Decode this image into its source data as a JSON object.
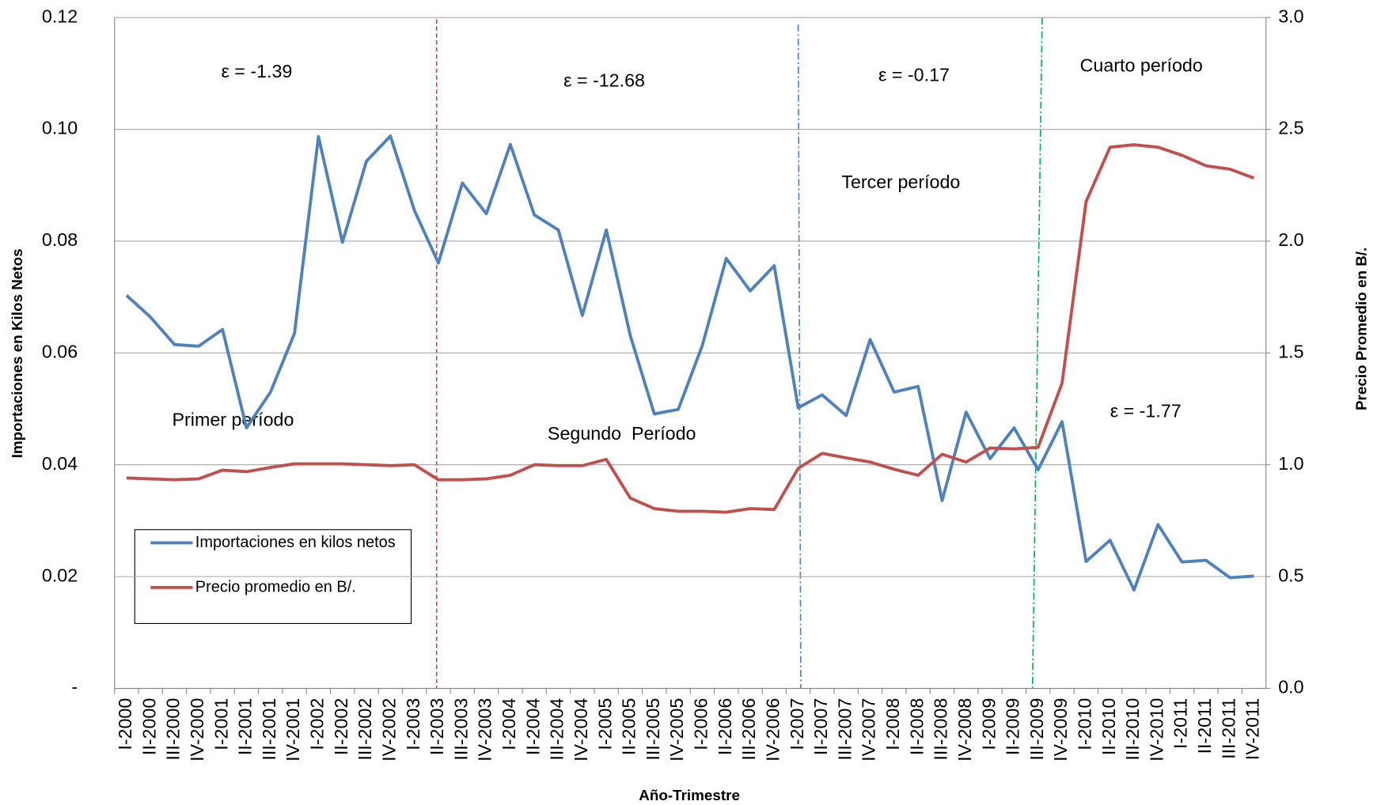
{
  "chart_data": {
    "type": "line",
    "x_label": "Año-Trimestre",
    "y_label": "Importaciones en Kilos Netos",
    "y2_label": "Precio Promedio en B/.",
    "categories": [
      "I-2000",
      "II-2000",
      "III-2000",
      "IV-2000",
      "I-2001",
      "II-2001",
      "III-2001",
      "IV-2001",
      "I-2002",
      "II-2002",
      "III-2002",
      "IV-2002",
      "I-2003",
      "II-2003",
      "III-2003",
      "IV-2003",
      "I-2004",
      "II-2004",
      "III-2004",
      "IV-2004",
      "I-2005",
      "II-2005",
      "III-2005",
      "IV-2005",
      "I-2006",
      "II-2006",
      "III-2006",
      "IV-2006",
      "I-2007",
      "II-2007",
      "III-2007",
      "IV-2007",
      "I-2008",
      "II-2008",
      "III-2008",
      "IV-2008",
      "I-2009",
      "II-2009",
      "III-2009",
      "IV-2009",
      "I-2010",
      "II-2010",
      "III-2010",
      "IV-2010",
      "I-2011",
      "II-2011",
      "III-2011",
      "IV-2011"
    ],
    "series": [
      {
        "name": "Importaciones en kilos netos",
        "color": "#4f81bd",
        "values": [
          0.0703,
          0.0664,
          0.0615,
          0.0612,
          0.0642,
          0.0466,
          0.053,
          0.0635,
          0.0987,
          0.0798,
          0.0943,
          0.0988,
          0.0855,
          0.0761,
          0.0904,
          0.0849,
          0.0973,
          0.0847,
          0.082,
          0.0667,
          0.082,
          0.0631,
          0.0491,
          0.0499,
          0.0613,
          0.0769,
          0.0711,
          0.0756,
          0.0502,
          0.0525,
          0.0488,
          0.0624,
          0.053,
          0.054,
          0.0336,
          0.0494,
          0.0411,
          0.0466,
          0.0391,
          0.0477,
          0.0227,
          0.0265,
          0.0176,
          0.0293,
          0.0226,
          0.0229,
          0.0198,
          0.0201
        ]
      },
      {
        "name": "Precio promedio en B/.",
        "color": "#c0504d",
        "axis": "y2",
        "values": [
          0.941,
          0.937,
          0.933,
          0.937,
          0.976,
          0.969,
          0.988,
          1.004,
          1.004,
          1.004,
          1.0,
          0.996,
          1.0,
          0.933,
          0.933,
          0.937,
          0.953,
          1.0,
          0.996,
          0.996,
          1.024,
          0.851,
          0.804,
          0.792,
          0.792,
          0.788,
          0.804,
          0.8,
          0.984,
          1.051,
          1.031,
          1.012,
          0.98,
          0.953,
          1.047,
          1.012,
          1.075,
          1.071,
          1.078,
          1.365,
          2.176,
          2.42,
          2.431,
          2.42,
          2.384,
          2.337,
          2.322,
          2.282
        ]
      }
    ],
    "ylim": [
      0,
      0.12
    ],
    "yticks": [
      {
        "value": 0,
        "label": "-"
      },
      0.02,
      0.04,
      0.06,
      0.08,
      {
        "value": 0.1,
        "label": "0.10"
      },
      0.12
    ],
    "y2lim": [
      0,
      3
    ],
    "y2ticks": [
      {
        "value": 0,
        "label": "0.0"
      },
      0.5,
      {
        "value": 1,
        "label": "1.0"
      },
      1.5,
      {
        "value": 2,
        "label": "2.0"
      },
      2.5,
      {
        "value": 3,
        "label": "3.0"
      }
    ],
    "grid": true,
    "legend": "lower-left",
    "annotations": [
      "ε = -1.39",
      "ε = -12.68",
      "ε = -0.17",
      "Cuarto período",
      "Tercer período",
      "ε = -1.77",
      "Primer período",
      "Segundo  Período"
    ]
  }
}
